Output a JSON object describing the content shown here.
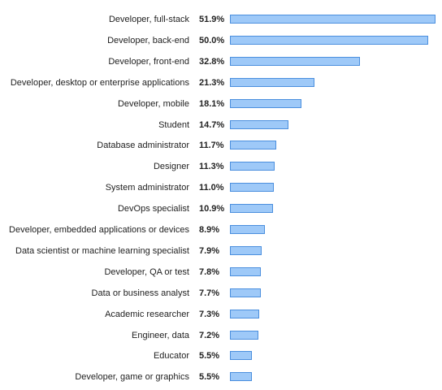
{
  "chart_data": {
    "type": "bar",
    "orientation": "horizontal",
    "title": "",
    "xlabel": "",
    "ylabel": "",
    "xlim": [
      0,
      51.9
    ],
    "grid": false,
    "legend": "none",
    "value_suffix": "%",
    "bar_fill_color": "#9ec9f8",
    "bar_border_color": "#4b8fde",
    "categories": [
      "Developer, full-stack",
      "Developer, back-end",
      "Developer, front-end",
      "Developer, desktop or enterprise applications",
      "Developer, mobile",
      "Student",
      "Database administrator",
      "Designer",
      "System administrator",
      "DevOps specialist",
      "Developer, embedded applications or devices",
      "Data scientist or machine learning specialist",
      "Developer, QA or test",
      "Data or business analyst",
      "Academic researcher",
      "Engineer, data",
      "Educator",
      "Developer, game or graphics"
    ],
    "values": [
      51.9,
      50.0,
      32.8,
      21.3,
      18.1,
      14.7,
      11.7,
      11.3,
      11.0,
      10.9,
      8.9,
      7.9,
      7.8,
      7.7,
      7.3,
      7.2,
      5.5,
      5.5
    ],
    "value_labels": [
      "51.9%",
      "50.0%",
      "32.8%",
      "21.3%",
      "18.1%",
      "14.7%",
      "11.7%",
      "11.3%",
      "11.0%",
      "10.9%",
      "8.9%",
      "7.9%",
      "7.8%",
      "7.7%",
      "7.3%",
      "7.2%",
      "5.5%",
      "5.5%"
    ]
  }
}
